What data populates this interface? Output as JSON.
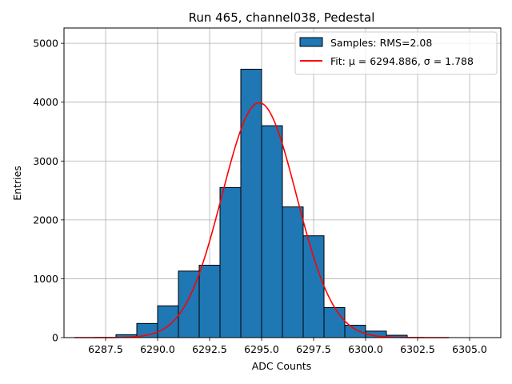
{
  "chart_data": {
    "type": "bar",
    "title": "Run 465, channel038, Pedestal",
    "xlabel": "ADC Counts",
    "ylabel": "Entries",
    "xlim": [
      6285.5,
      6306.5
    ],
    "ylim": [
      0,
      5260
    ],
    "xticks": [
      6287.5,
      6290.0,
      6292.5,
      6295.0,
      6297.5,
      6300.0,
      6302.5,
      6305.0
    ],
    "xtick_labels": [
      "6287.5",
      "6290.0",
      "6292.5",
      "6295.0",
      "6297.5",
      "6300.0",
      "6302.5",
      "6305.0"
    ],
    "yticks": [
      0,
      1000,
      2000,
      3000,
      4000,
      5000
    ],
    "ytick_labels": [
      "0",
      "1000",
      "2000",
      "3000",
      "4000",
      "5000"
    ],
    "grid": true,
    "legend_position": "top-right",
    "histogram": {
      "name": "Samples: RMS=2.08",
      "color": "#1f77b4",
      "bin_edges": [
        6286,
        6287,
        6288,
        6289,
        6290,
        6291,
        6292,
        6293,
        6294,
        6295,
        6296,
        6297,
        6298,
        6299,
        6300,
        6301,
        6302,
        6303,
        6304,
        6305,
        6306
      ],
      "counts": [
        0,
        0,
        50,
        240,
        540,
        1130,
        1230,
        2550,
        4560,
        3600,
        2220,
        1730,
        510,
        210,
        110,
        40,
        0,
        0,
        0,
        0
      ]
    },
    "fit": {
      "name": "Fit: μ = 6294.886, σ = 1.788",
      "color": "#ff0000",
      "mu": 6294.886,
      "sigma": 1.788,
      "amplitude": 3990,
      "x_range": [
        6286.0,
        6304.0
      ]
    }
  }
}
